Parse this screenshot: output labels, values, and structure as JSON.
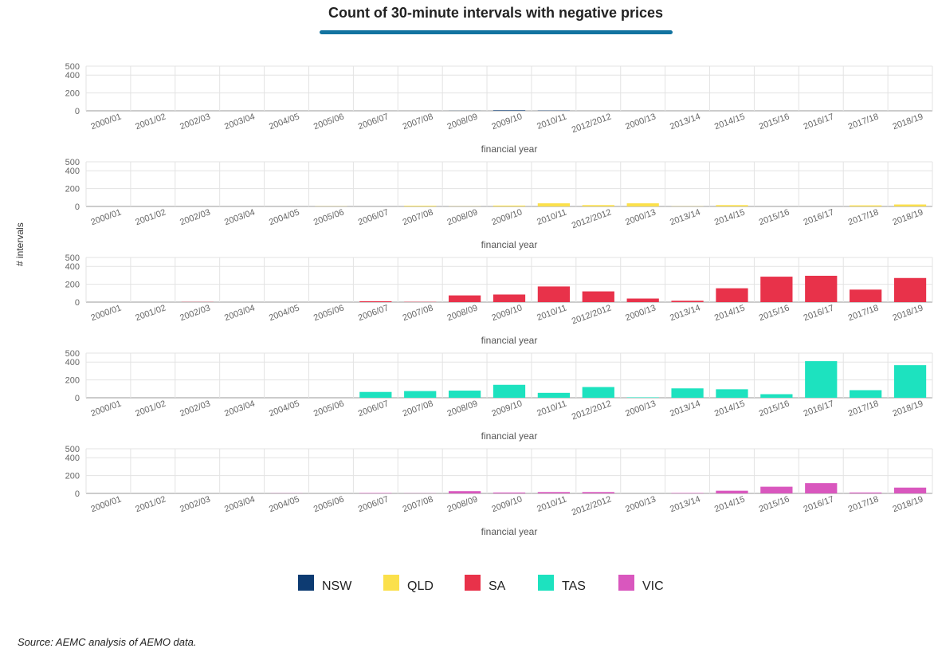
{
  "title": "Count of 30-minute intervals with negative prices",
  "y_axis_label": "# intervals",
  "source": "Source: AEMC analysis of AEMO data.",
  "colors": {
    "accent_rule": "#1273a0",
    "grid": "#e3e3e3",
    "axis": "#999999"
  },
  "chart_data": {
    "type": "bar",
    "layout": "small-multiples",
    "xlabel": "financial year",
    "ylabel": "# intervals",
    "ylim": [
      0,
      500
    ],
    "yticks": [
      0,
      200,
      400,
      500
    ],
    "grid": true,
    "legend_position": "bottom",
    "categories": [
      "2000/01",
      "2001/02",
      "2002/03",
      "2003/04",
      "2004/05",
      "2005/06",
      "2006/07",
      "2007/08",
      "2008/09",
      "2009/10",
      "2010/11",
      "2012/2012",
      "2000/13",
      "2013/14",
      "2014/15",
      "2015/16",
      "2016/17",
      "2017/18",
      "2018/19"
    ],
    "series": [
      {
        "name": "NSW",
        "color": "#0d3b72",
        "values": [
          0,
          0,
          0,
          0,
          0,
          0,
          0,
          0,
          1,
          6,
          3,
          0,
          0,
          0,
          0,
          0,
          0,
          0,
          0
        ]
      },
      {
        "name": "QLD",
        "color": "#fbe04b",
        "values": [
          0,
          0,
          0,
          0,
          0,
          2,
          0,
          8,
          2,
          10,
          35,
          15,
          35,
          2,
          15,
          0,
          0,
          12,
          22
        ]
      },
      {
        "name": "SA",
        "color": "#e8324a",
        "values": [
          0,
          0,
          2,
          0,
          0,
          0,
          10,
          3,
          75,
          85,
          175,
          120,
          40,
          15,
          155,
          285,
          295,
          140,
          270
        ]
      },
      {
        "name": "TAS",
        "color": "#1de2bf",
        "values": [
          0,
          0,
          0,
          0,
          0,
          0,
          65,
          75,
          80,
          145,
          55,
          120,
          5,
          105,
          95,
          40,
          410,
          85,
          365
        ]
      },
      {
        "name": "VIC",
        "color": "#d957be",
        "values": [
          0,
          0,
          0,
          0,
          2,
          0,
          5,
          2,
          25,
          10,
          15,
          15,
          0,
          5,
          30,
          75,
          115,
          10,
          65
        ]
      }
    ]
  }
}
